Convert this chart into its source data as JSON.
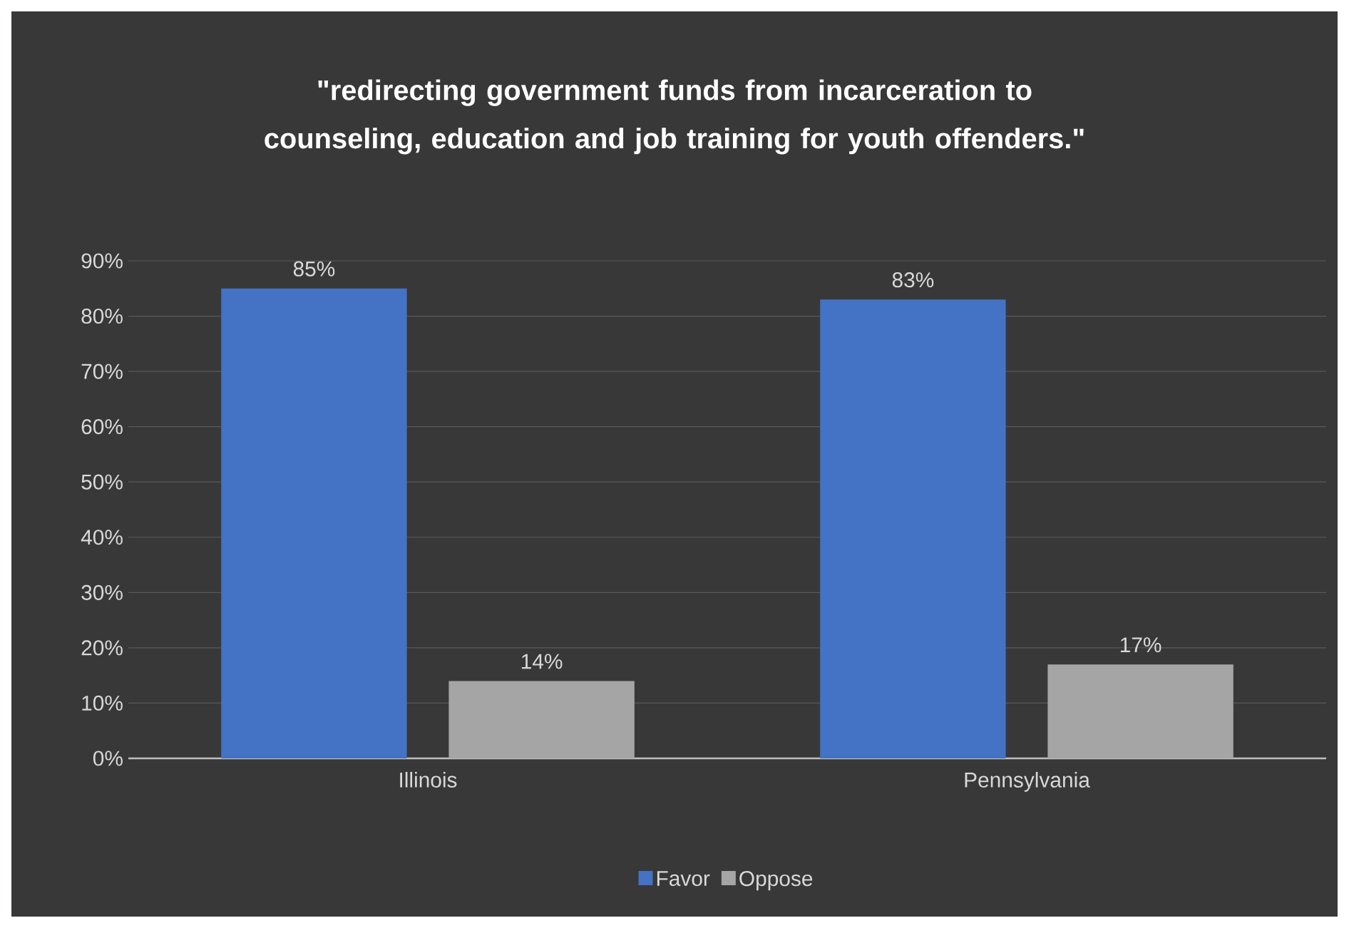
{
  "chart_data": {
    "type": "bar",
    "title": "\"redirecting government funds from incarceration to counseling, education and job training for youth offenders.\"",
    "categories": [
      "Illinois",
      "Pennsylvania"
    ],
    "series": [
      {
        "name": "Favor",
        "color": "#4472c4",
        "values": [
          85,
          83
        ],
        "value_labels": [
          "85%",
          "83%"
        ]
      },
      {
        "name": "Oppose",
        "color": "#a5a5a5",
        "values": [
          14,
          17
        ],
        "value_labels": [
          "14%",
          "17%"
        ]
      }
    ],
    "ylim": [
      0,
      90
    ],
    "yticks": [
      {
        "value": 0,
        "label": "0%"
      },
      {
        "value": 10,
        "label": "10%"
      },
      {
        "value": 20,
        "label": "20%"
      },
      {
        "value": 30,
        "label": "30%"
      },
      {
        "value": 40,
        "label": "40%"
      },
      {
        "value": 50,
        "label": "50%"
      },
      {
        "value": 60,
        "label": "60%"
      },
      {
        "value": 70,
        "label": "70%"
      },
      {
        "value": 80,
        "label": "80%"
      },
      {
        "value": 90,
        "label": "90%"
      }
    ],
    "grid": "y",
    "legend": "bottom"
  }
}
